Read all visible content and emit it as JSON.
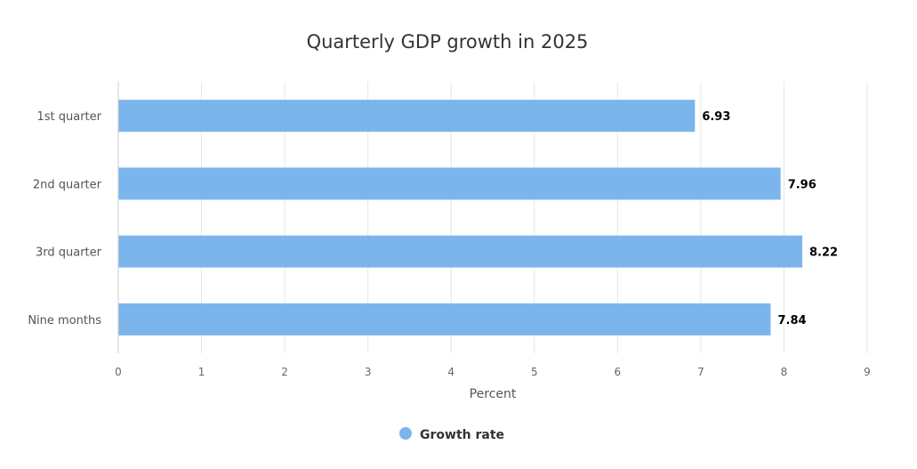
{
  "colors": {
    "bar": "#7cb5ec",
    "background": "#ffffff"
  },
  "chart_data": {
    "type": "bar",
    "orientation": "horizontal",
    "title": "Quarterly GDP growth in 2025",
    "categories": [
      "1st quarter",
      "2nd quarter",
      "3rd quarter",
      "Nine months"
    ],
    "series": [
      {
        "name": "Growth rate",
        "values": [
          6.93,
          7.96,
          8.22,
          7.84
        ],
        "color": "#7cb5ec"
      }
    ],
    "xlabel": "Percent",
    "xlim": [
      0,
      9
    ],
    "xticks": [
      "0",
      "1",
      "2",
      "3",
      "4",
      "5",
      "6",
      "7",
      "8",
      "9"
    ],
    "data_labels": [
      "6.93",
      "7.96",
      "8.22",
      "7.84"
    ],
    "grid": true,
    "legend_position": "bottom-center"
  }
}
